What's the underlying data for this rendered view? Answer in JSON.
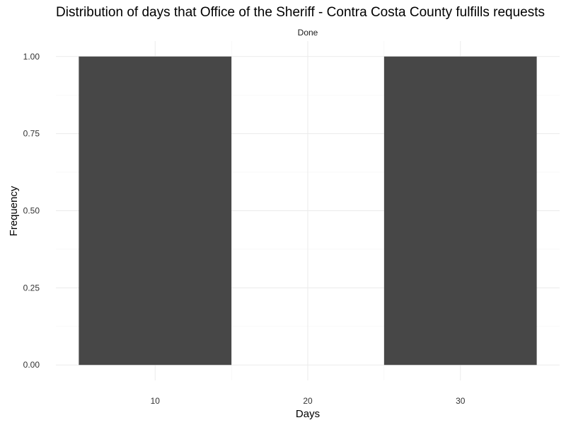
{
  "chart_data": {
    "type": "bar",
    "title": "Distribution of days that Office of the Sheriff - Contra Costa County fulfills requests",
    "facet_label": "Done",
    "xlabel": "Days",
    "ylabel": "Frequency",
    "bins": [
      {
        "x_start": 5,
        "x_end": 15,
        "value": 1
      },
      {
        "x_start": 25,
        "x_end": 35,
        "value": 1
      }
    ],
    "xlim": [
      3.5,
      36.5
    ],
    "ylim": [
      -0.05,
      1.05
    ],
    "x_ticks": [
      10,
      20,
      30
    ],
    "x_tick_labels": [
      "10",
      "20",
      "30"
    ],
    "y_ticks": [
      0,
      0.25,
      0.5,
      0.75,
      1.0
    ],
    "y_tick_labels": [
      "0.00",
      "0.25",
      "0.50",
      "0.75",
      "1.00"
    ],
    "grid": true,
    "legend": "none",
    "colors": {
      "bar": "#474747",
      "grid_major": "#ebebeb",
      "grid_minor": "#f5f5f5",
      "text": "#000000",
      "tick_text": "#333333"
    }
  }
}
